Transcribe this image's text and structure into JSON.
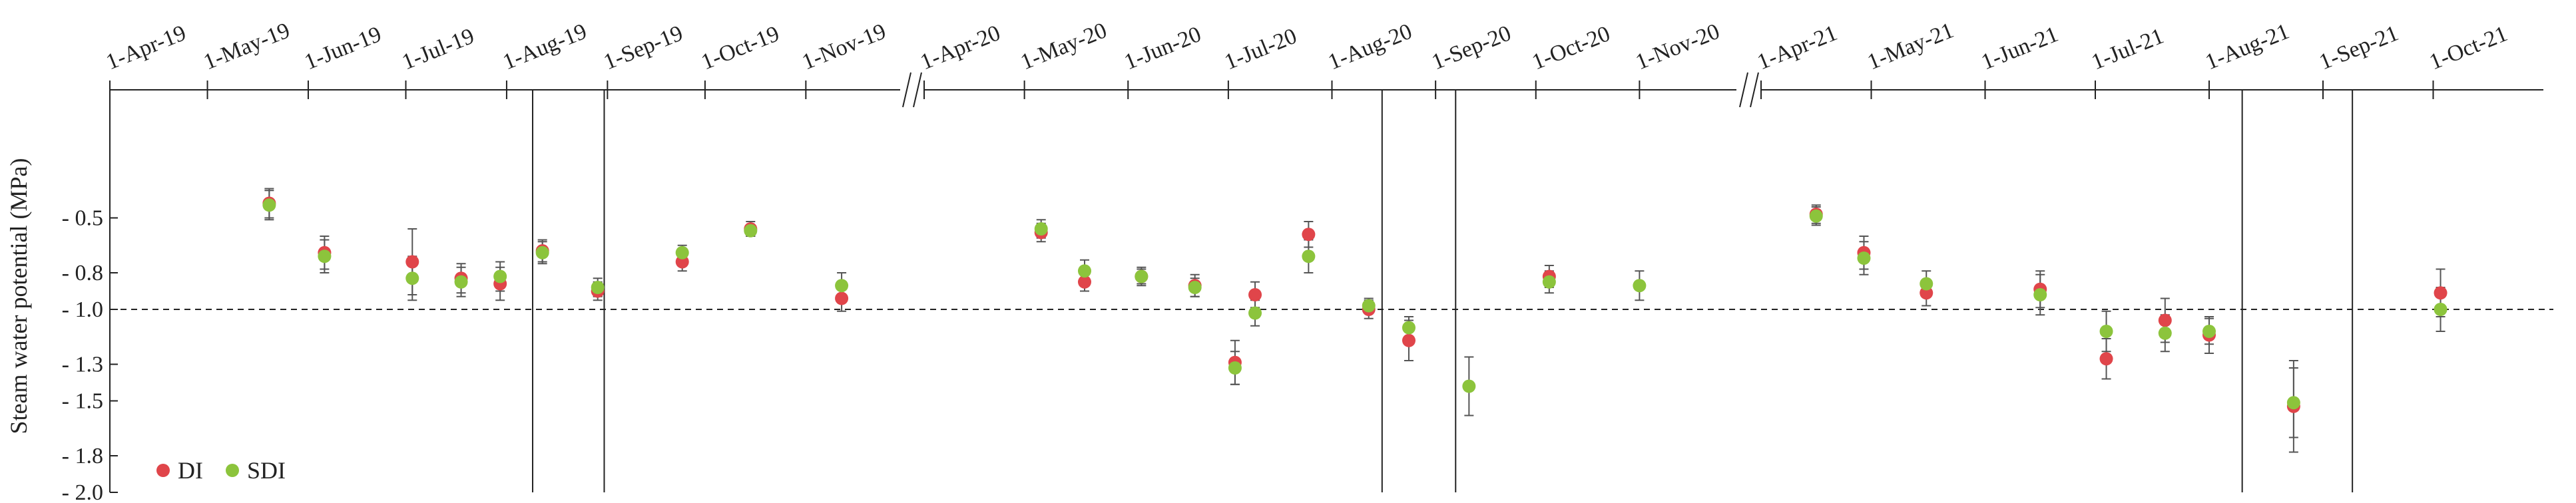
{
  "chart_data": {
    "type": "scatter",
    "title": "",
    "ylabel": "Steam water potential (MPa)",
    "xlabel": "",
    "ylim": [
      -2.0,
      0.2
    ],
    "y_ticks": [
      {
        "value": -0.5,
        "label": "- 0.5"
      },
      {
        "value": -0.8,
        "label": "- 0.8"
      },
      {
        "value": -1.0,
        "label": "- 1.0"
      },
      {
        "value": -1.3,
        "label": "- 1.3"
      },
      {
        "value": -1.5,
        "label": "- 1.5"
      },
      {
        "value": -1.8,
        "label": "- 1.8"
      },
      {
        "value": -2.0,
        "label": "- 2.0"
      }
    ],
    "reference_line": -1.0,
    "legend_position": "bottom-left",
    "colors": {
      "DI": "#e0454a",
      "SDI": "#8cc43c",
      "errorbar": "#555555"
    },
    "panels": [
      {
        "year": 2019,
        "start": "2019-04-01",
        "end": "2019-11-30",
        "tick_labels": [
          "1-Apr-19",
          "1-May-19",
          "1-Jun-19",
          "1-Jul-19",
          "1-Aug-19",
          "1-Sep-19",
          "1-Oct-19",
          "1-Nov-19"
        ],
        "markers": [
          "2019-08-09",
          "2019-08-31"
        ]
      },
      {
        "year": 2020,
        "start": "2020-04-01",
        "end": "2020-11-30",
        "tick_labels": [
          "1-Apr-20",
          "1-May-20",
          "1-Jun-20",
          "1-Jul-20",
          "1-Aug-20",
          "1-Sep-20",
          "1-Oct-20",
          "1-Nov-20"
        ],
        "markers": [
          "2020-08-16",
          "2020-09-07"
        ]
      },
      {
        "year": 2021,
        "start": "2021-04-01",
        "end": "2021-10-31",
        "tick_labels": [
          "1-Apr-21",
          "1-May-21",
          "1-Jun-21",
          "1-Jul-21",
          "1-Aug-21",
          "1-Sep-21",
          "1-Oct-21"
        ],
        "markers": [
          "2021-08-10",
          "2021-09-09"
        ]
      }
    ],
    "series": [
      {
        "name": "DI",
        "points": [
          {
            "x": "2019-05-20",
            "y": -0.42,
            "err": 0.08
          },
          {
            "x": "2019-06-06",
            "y": -0.69,
            "err": 0.09
          },
          {
            "x": "2019-07-03",
            "y": -0.74,
            "err": 0.18
          },
          {
            "x": "2019-07-18",
            "y": -0.83,
            "err": 0.08
          },
          {
            "x": "2019-07-30",
            "y": -0.86,
            "err": 0.09
          },
          {
            "x": "2019-08-12",
            "y": -0.68,
            "err": 0.06
          },
          {
            "x": "2019-08-29",
            "y": -0.9,
            "err": 0.05
          },
          {
            "x": "2019-09-24",
            "y": -0.74,
            "err": 0.05
          },
          {
            "x": "2019-10-15",
            "y": -0.56,
            "err": 0.04
          },
          {
            "x": "2019-11-12",
            "y": -0.94,
            "err": 0.07
          },
          {
            "x": "2020-05-06",
            "y": -0.58,
            "err": 0.05
          },
          {
            "x": "2020-05-19",
            "y": -0.85,
            "err": 0.05
          },
          {
            "x": "2020-06-05",
            "y": -0.82,
            "err": 0.05
          },
          {
            "x": "2020-06-21",
            "y": -0.87,
            "err": 0.06
          },
          {
            "x": "2020-07-03",
            "y": -1.29,
            "err": 0.12
          },
          {
            "x": "2020-07-09",
            "y": -0.92,
            "err": 0.07
          },
          {
            "x": "2020-07-25",
            "y": -0.59,
            "err": 0.07
          },
          {
            "x": "2020-08-12",
            "y": -1.0,
            "err": 0.05
          },
          {
            "x": "2020-08-24",
            "y": -1.17,
            "err": 0.11
          },
          {
            "x": "2020-10-05",
            "y": -0.82,
            "err": 0.06
          },
          {
            "x": "2021-04-16",
            "y": -0.48,
            "err": 0.05
          },
          {
            "x": "2021-04-29",
            "y": -0.69,
            "err": 0.09
          },
          {
            "x": "2021-05-16",
            "y": -0.91,
            "err": 0.07
          },
          {
            "x": "2021-06-16",
            "y": -0.89,
            "err": 0.1
          },
          {
            "x": "2021-07-04",
            "y": -1.27,
            "err": 0.11
          },
          {
            "x": "2021-07-20",
            "y": -1.06,
            "err": 0.12
          },
          {
            "x": "2021-08-01",
            "y": -1.14,
            "err": 0.1
          },
          {
            "x": "2021-08-24",
            "y": -1.53,
            "err": 0.25
          },
          {
            "x": "2021-10-03",
            "y": -0.91,
            "err": 0.13
          }
        ]
      },
      {
        "name": "SDI",
        "points": [
          {
            "x": "2019-05-20",
            "y": -0.43,
            "err": 0.08
          },
          {
            "x": "2019-06-06",
            "y": -0.71,
            "err": 0.09
          },
          {
            "x": "2019-07-03",
            "y": -0.83,
            "err": 0.12
          },
          {
            "x": "2019-07-18",
            "y": -0.85,
            "err": 0.08
          },
          {
            "x": "2019-07-30",
            "y": -0.82,
            "err": 0.08
          },
          {
            "x": "2019-08-12",
            "y": -0.69,
            "err": 0.06
          },
          {
            "x": "2019-08-29",
            "y": -0.88,
            "err": 0.05
          },
          {
            "x": "2019-09-24",
            "y": -0.69,
            "err": 0.04
          },
          {
            "x": "2019-10-15",
            "y": -0.57,
            "err": 0.03
          },
          {
            "x": "2019-11-12",
            "y": -0.87,
            "err": 0.07
          },
          {
            "x": "2020-05-06",
            "y": -0.56,
            "err": 0.05
          },
          {
            "x": "2020-05-19",
            "y": -0.79,
            "err": 0.06
          },
          {
            "x": "2020-06-05",
            "y": -0.82,
            "err": 0.04
          },
          {
            "x": "2020-06-21",
            "y": -0.88,
            "err": 0.05
          },
          {
            "x": "2020-07-03",
            "y": -1.32,
            "err": 0.09
          },
          {
            "x": "2020-07-09",
            "y": -1.02,
            "err": 0.07
          },
          {
            "x": "2020-07-25",
            "y": -0.71,
            "err": 0.09
          },
          {
            "x": "2020-08-12",
            "y": -0.98,
            "err": 0.04
          },
          {
            "x": "2020-08-24",
            "y": -1.1,
            "err": 0.06
          },
          {
            "x": "2020-09-11",
            "y": -1.42,
            "err": 0.16
          },
          {
            "x": "2020-10-05",
            "y": -0.85,
            "err": 0.06
          },
          {
            "x": "2020-11-01",
            "y": -0.87,
            "err": 0.08
          },
          {
            "x": "2021-04-16",
            "y": -0.49,
            "err": 0.05
          },
          {
            "x": "2021-04-29",
            "y": -0.72,
            "err": 0.09
          },
          {
            "x": "2021-05-16",
            "y": -0.86,
            "err": 0.07
          },
          {
            "x": "2021-06-16",
            "y": -0.92,
            "err": 0.11
          },
          {
            "x": "2021-07-04",
            "y": -1.12,
            "err": 0.11
          },
          {
            "x": "2021-07-20",
            "y": -1.13,
            "err": 0.1
          },
          {
            "x": "2021-08-01",
            "y": -1.12,
            "err": 0.07
          },
          {
            "x": "2021-08-24",
            "y": -1.51,
            "err": 0.19
          },
          {
            "x": "2021-10-03",
            "y": -1.0,
            "err": 0.12
          }
        ]
      }
    ]
  }
}
